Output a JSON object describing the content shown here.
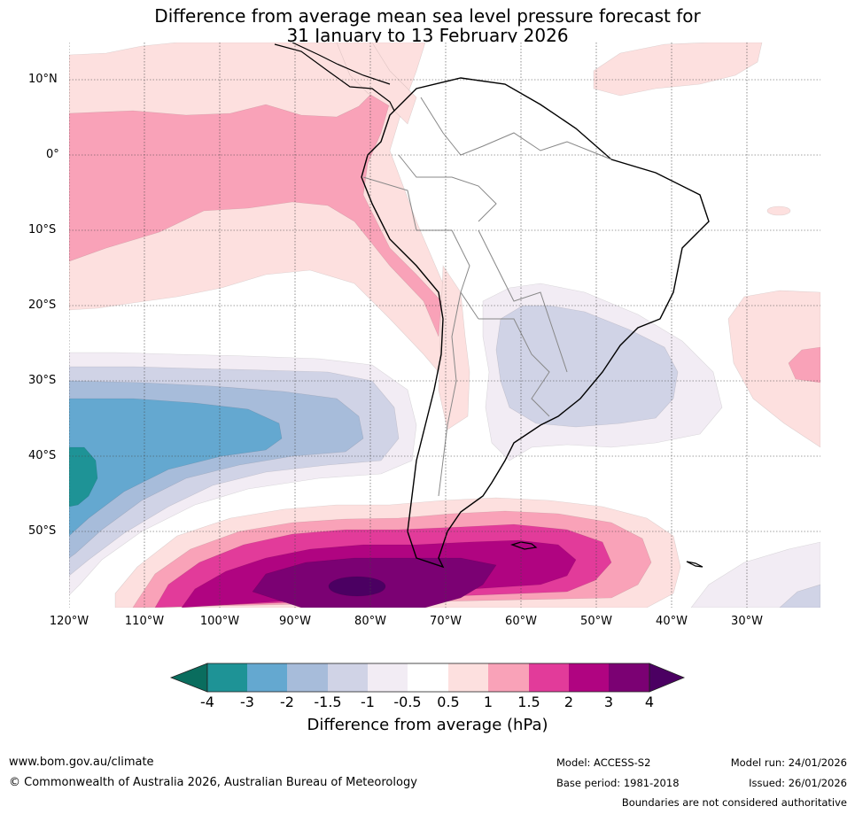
{
  "title": {
    "line1": "Difference from average mean sea level pressure forecast for",
    "line2": "31 January to 13 February 2026"
  },
  "map": {
    "lat_labels": [
      "10°N",
      "0°",
      "10°S",
      "20°S",
      "30°S",
      "40°S",
      "50°S"
    ],
    "lat_values": [
      10,
      0,
      -10,
      -20,
      -30,
      -40,
      -50
    ],
    "lon_labels": [
      "120°W",
      "110°W",
      "100°W",
      "90°W",
      "80°W",
      "70°W",
      "60°W",
      "50°W",
      "40°W",
      "30°W"
    ],
    "lon_values": [
      -120,
      -110,
      -100,
      -90,
      -80,
      -70,
      -60,
      -50,
      -40,
      -30
    ],
    "extent": {
      "lon_min": -120,
      "lon_max": -20,
      "lat_min": -60,
      "lat_max": 15
    },
    "colors": {
      "n4": "#0a6d5e",
      "n3": "#1e9396",
      "n2": "#64a8d0",
      "n15": "#a7bcda",
      "n1": "#d0d3e6",
      "n05": "#f2ecf4",
      "zero": "#ffffff",
      "p05": "#fde0df",
      "p1": "#f9a2b8",
      "p15": "#e23b9a",
      "p2": "#b00481",
      "p3": "#7b0173",
      "p4": "#4b0062"
    }
  },
  "colorbar": {
    "ticks": [
      "-4",
      "-3",
      "-2",
      "-1.5",
      "-1",
      "-0.5",
      "0.5",
      "1",
      "1.5",
      "2",
      "3",
      "4"
    ],
    "title": "Difference from average (hPa)"
  },
  "footer": {
    "url": "www.bom.gov.au/climate",
    "copyright": "© Commonwealth of Australia 2026, Australian Bureau of Meteorology",
    "model": "Model: ACCESS-S2",
    "base_period": "Base period: 1981-2018",
    "model_run": "Model run: 24/01/2026",
    "issued": "Issued: 26/01/2026",
    "disclaimer": "Boundaries are not considered authoritative"
  }
}
